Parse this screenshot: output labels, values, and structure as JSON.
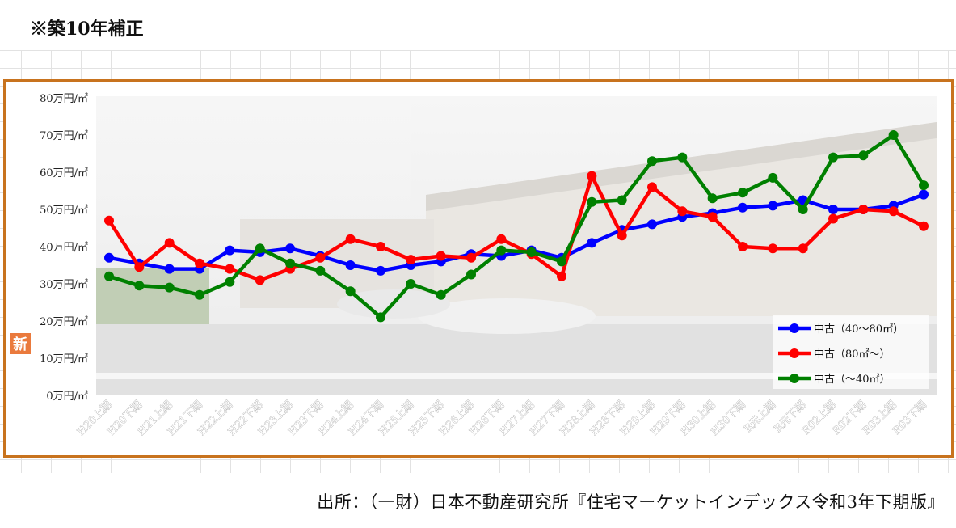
{
  "note": "※築10年補正",
  "source": "出所：（一財）日本不動産研究所『住宅マーケットインデックス令和3年下期版』",
  "badge": "新",
  "chart_data": {
    "type": "line",
    "title": "",
    "xlabel": "",
    "ylabel": "",
    "ylim": [
      0,
      80
    ],
    "yticks": [
      0,
      10,
      20,
      30,
      40,
      50,
      60,
      70,
      80
    ],
    "ytick_labels": [
      "0万円/㎡",
      "10万円/㎡",
      "20万円/㎡",
      "30万円/㎡",
      "40万円/㎡",
      "50万円/㎡",
      "60万円/㎡",
      "70万円/㎡",
      "80万円/㎡"
    ],
    "categories": [
      "H20上期",
      "H20下期",
      "H21上期",
      "H21下期",
      "H22上期",
      "H22下期",
      "H23上期",
      "H23下期",
      "H24上期",
      "H24下期",
      "H25上期",
      "H25下期",
      "H26上期",
      "H26下期",
      "H27上期",
      "H27下期",
      "H28上期",
      "H28下期",
      "H29上期",
      "H29下期",
      "H30上期",
      "H30下期",
      "R元上期",
      "R元下期",
      "R02上期",
      "R02下期",
      "R03上期",
      "R03下期"
    ],
    "grid": false,
    "legend_position": "bottom-right",
    "series": [
      {
        "name": "中古（40～80㎡）",
        "color": "#0000ff",
        "values": [
          37,
          35.5,
          34,
          34,
          39,
          38.5,
          39.5,
          37.5,
          35,
          33.5,
          35,
          36,
          38,
          37.5,
          39,
          37,
          41,
          44.5,
          46,
          48,
          49,
          50.5,
          51,
          52.5,
          50,
          50,
          51,
          54
        ]
      },
      {
        "name": "中古（80㎡～）",
        "color": "#ff0000",
        "values": [
          47,
          34.5,
          41,
          35.5,
          34,
          31,
          34,
          37,
          42,
          40,
          36.5,
          37.5,
          37,
          42,
          38,
          32,
          59,
          43,
          56,
          49.5,
          48,
          40,
          39.5,
          39.5,
          47.5,
          50,
          49.5,
          45.5
        ]
      },
      {
        "name": "中古（～40㎡）",
        "color": "#008000",
        "values": [
          32,
          29.5,
          29,
          27,
          30.5,
          39.5,
          35.5,
          33.5,
          28,
          21,
          30,
          27,
          32.5,
          39,
          38.5,
          36,
          52,
          52.5,
          63,
          64,
          53,
          54.5,
          58.5,
          50,
          64,
          64.5,
          70,
          56.5
        ]
      }
    ]
  }
}
